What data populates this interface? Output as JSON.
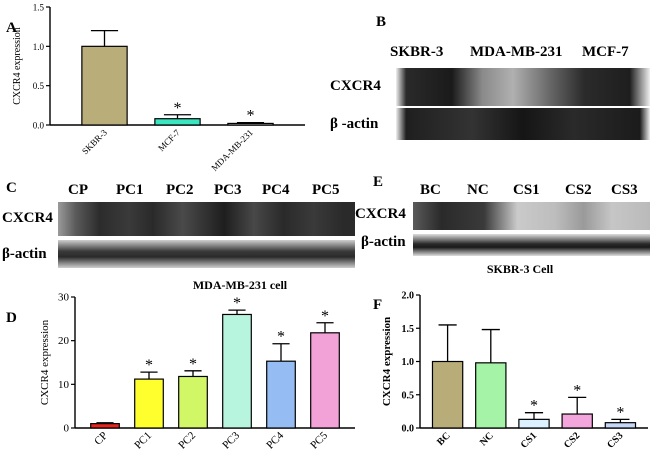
{
  "panel_labels": {
    "A": "A",
    "B": "B",
    "C": "C",
    "D": "D",
    "E": "E",
    "F": "F"
  },
  "chart_data": [
    {
      "id": "A",
      "type": "bar",
      "ylabel": "CXCR4 expression",
      "ylim": [
        0,
        1.5
      ],
      "yticks": [
        "0.0",
        "0.5",
        "1.0",
        "1.5"
      ],
      "categories": [
        "SKBR-3",
        "MCF-7",
        "MDA-MB-231"
      ],
      "values": [
        1.0,
        0.08,
        0.02
      ],
      "errors": [
        0.2,
        0.05,
        0.01
      ],
      "significance": [
        "",
        "*",
        "*"
      ],
      "colors": [
        "#b9ad79",
        "#39e6bf",
        "#e8e6e2"
      ]
    },
    {
      "id": "D",
      "type": "bar",
      "title": "MDA-MB-231 cell",
      "ylabel": "CXCR4 expression",
      "ylim": [
        0,
        30
      ],
      "yticks": [
        "0",
        "10",
        "20",
        "30"
      ],
      "categories": [
        "CP",
        "PC1",
        "PC2",
        "PC3",
        "PC4",
        "PC5"
      ],
      "values": [
        1.0,
        11.2,
        11.8,
        26.0,
        15.3,
        21.8
      ],
      "errors": [
        0.2,
        1.6,
        1.3,
        1.0,
        4.0,
        2.3
      ],
      "significance": [
        "",
        "*",
        "*",
        "*",
        "*",
        "*"
      ],
      "colors": [
        "#e8241f",
        "#ffff2e",
        "#d2f766",
        "#b8f5de",
        "#95bdf3",
        "#f2a2d6"
      ]
    },
    {
      "id": "F",
      "type": "bar",
      "title": "SKBR-3 Cell",
      "ylabel": "CXCR4 expression",
      "ylim": [
        0,
        2.0
      ],
      "yticks": [
        "0.0",
        "0.5",
        "1.0",
        "1.5",
        "2.0"
      ],
      "categories": [
        "BC",
        "NC",
        "CS1",
        "CS2",
        "CS3"
      ],
      "values": [
        1.0,
        0.98,
        0.13,
        0.21,
        0.08
      ],
      "errors": [
        0.55,
        0.5,
        0.1,
        0.25,
        0.05
      ],
      "significance": [
        "",
        "",
        "*",
        "*",
        "*"
      ],
      "colors": [
        "#b8ad78",
        "#a5f3a7",
        "#dbf1ff",
        "#f3a6db",
        "#c5d6f6"
      ]
    }
  ],
  "blots": {
    "B": {
      "lanes": [
        "SKBR-3",
        "MDA-MB-231",
        "MCF-7"
      ],
      "rows": [
        "CXCR4",
        "β -actin"
      ]
    },
    "C": {
      "lanes": [
        "CP",
        "PC1",
        "PC2",
        "PC3",
        "PC4",
        "PC5"
      ],
      "rows": [
        "CXCR4",
        "β-actin"
      ]
    },
    "E": {
      "lanes": [
        "BC",
        "NC",
        "CS1",
        "CS2",
        "CS3"
      ],
      "rows": [
        "CXCR4",
        "β-actin"
      ]
    }
  }
}
